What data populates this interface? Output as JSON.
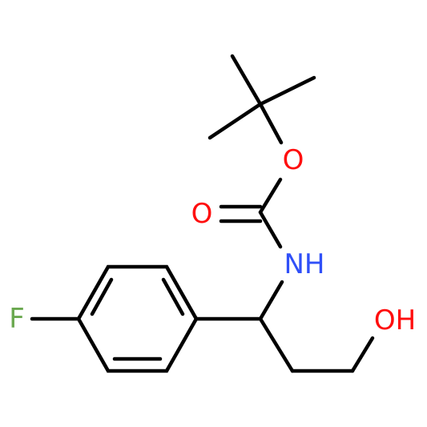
{
  "atoms": {
    "ester_oxygen": "O",
    "carbonyl_oxygen": "O",
    "amine": "NH",
    "fluorine": "F",
    "hydroxyl": "OH"
  }
}
